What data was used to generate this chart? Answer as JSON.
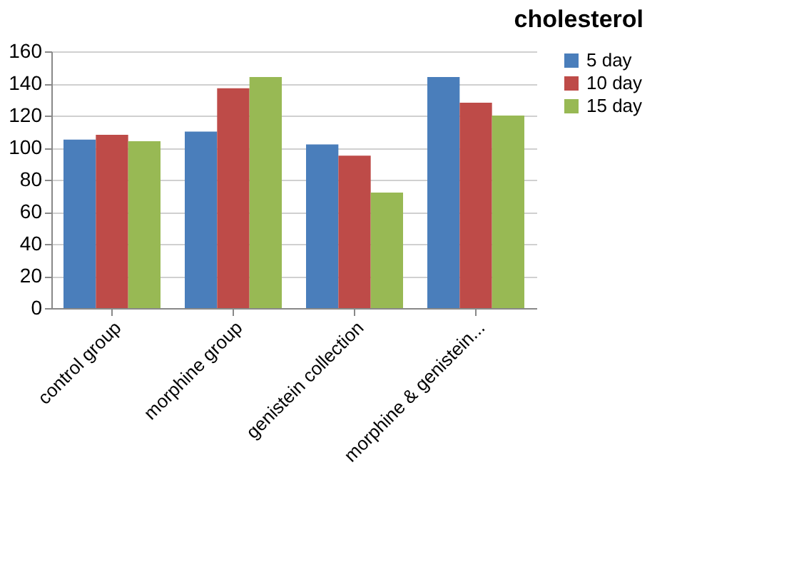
{
  "chart_data": {
    "type": "bar",
    "title": "cholesterol",
    "categories": [
      "control group",
      "morphine group",
      "genistein collection",
      "morphine & genistein..."
    ],
    "series": [
      {
        "name": "5 day",
        "color": "#4a7ebb",
        "values": [
          105,
          110,
          102,
          144
        ]
      },
      {
        "name": "10 day",
        "color": "#be4b48",
        "values": [
          108,
          137,
          95,
          128
        ]
      },
      {
        "name": "15 day",
        "color": "#98b954",
        "values": [
          104,
          144,
          72,
          120
        ]
      }
    ],
    "ylim": [
      0,
      160
    ],
    "yticks": [
      0,
      20,
      40,
      60,
      80,
      100,
      120,
      140,
      160
    ],
    "grid": "y",
    "legend": "right"
  }
}
